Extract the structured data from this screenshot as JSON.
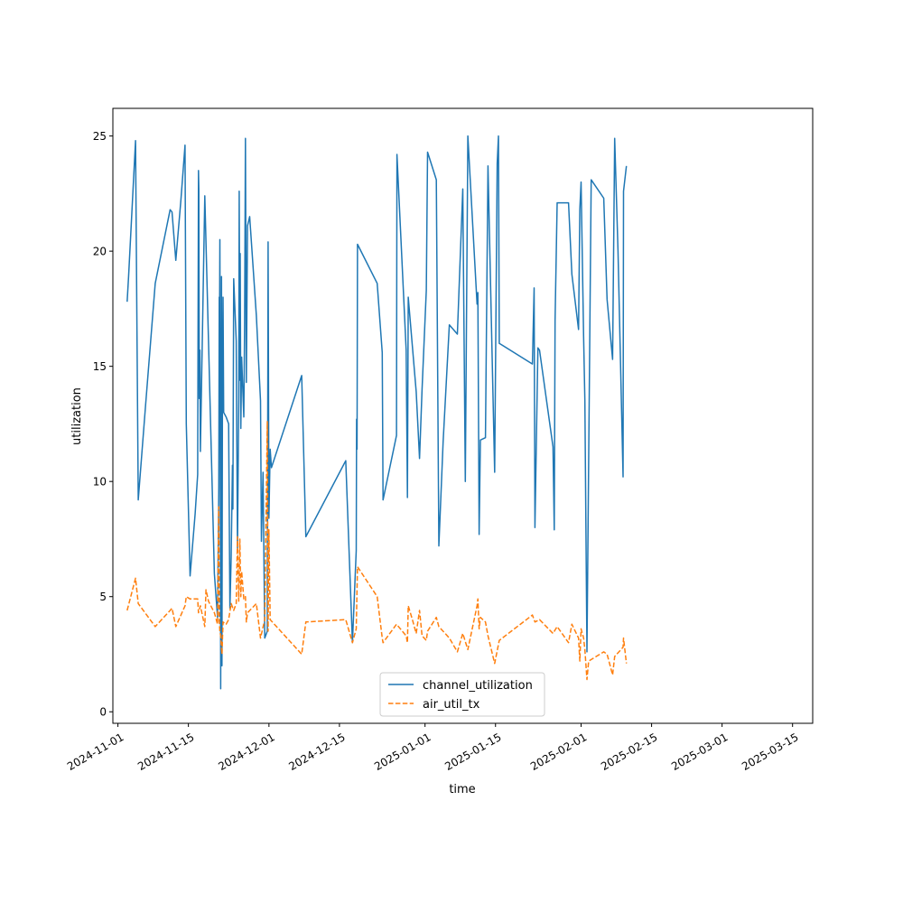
{
  "chart_data": {
    "type": "line",
    "xlabel": "time",
    "ylabel": "utilization",
    "xlim": [
      "2024-10-31",
      "2025-03-19"
    ],
    "ylim": [
      -0.5,
      26.2
    ],
    "x_ticks": [
      "2024-11-01",
      "2024-11-15",
      "2024-12-01",
      "2024-12-15",
      "2025-01-01",
      "2025-01-15",
      "2025-02-01",
      "2025-02-15",
      "2025-03-01",
      "2025-03-15"
    ],
    "y_ticks": [
      0,
      5,
      10,
      15,
      20,
      25
    ],
    "grid": false,
    "legend_position": "bottom-center",
    "series": [
      {
        "name": "channel_utilization",
        "color": "#1f77b4",
        "dash": "solid",
        "points": [
          [
            "2024-11-02 20:00",
            17.8
          ],
          [
            "2024-11-03 03:00",
            18.9
          ],
          [
            "2024-11-04 12:00",
            24.8
          ],
          [
            "2024-11-05 01:00",
            9.2
          ],
          [
            "2024-11-06 12:00",
            13.3
          ],
          [
            "2024-11-08 10:00",
            18.6
          ],
          [
            "2024-11-11 09:00",
            21.8
          ],
          [
            "2024-11-11 18:00",
            21.7
          ],
          [
            "2024-11-12 12:00",
            19.6
          ],
          [
            "2024-11-13 12:00",
            22.2
          ],
          [
            "2024-11-14 08:00",
            24.6
          ],
          [
            "2024-11-14 14:00",
            12.5
          ],
          [
            "2024-11-15 08:00",
            5.9
          ],
          [
            "2024-11-16 08:00",
            8.6
          ],
          [
            "2024-11-16 20:00",
            10.3
          ],
          [
            "2024-11-17 00:00",
            23.5
          ],
          [
            "2024-11-17 02:00",
            22.7
          ],
          [
            "2024-11-17 04:00",
            13.6
          ],
          [
            "2024-11-17 07:00",
            15.7
          ],
          [
            "2024-11-17 09:00",
            11.3
          ],
          [
            "2024-11-18 06:00",
            22.4
          ],
          [
            "2024-11-19 00:00",
            16.1
          ],
          [
            "2024-11-20 04:00",
            6.0
          ],
          [
            "2024-11-20 19:00",
            4.1
          ],
          [
            "2024-11-21 01:00",
            9.7
          ],
          [
            "2024-11-21 03:00",
            18.0
          ],
          [
            "2024-11-21 04:00",
            15.5
          ],
          [
            "2024-11-21 06:00",
            20.5
          ],
          [
            "2024-11-21 08:00",
            12.0
          ],
          [
            "2024-11-21 10:00",
            1.0
          ],
          [
            "2024-11-21 14:00",
            18.9
          ],
          [
            "2024-11-21 16:00",
            2.0
          ],
          [
            "2024-11-21 18:00",
            13.0
          ],
          [
            "2024-11-21 21:00",
            18.0
          ],
          [
            "2024-11-22 00:00",
            13.0
          ],
          [
            "2024-11-22 12:00",
            12.8
          ],
          [
            "2024-11-23 00:00",
            12.5
          ],
          [
            "2024-11-23 06:00",
            4.5
          ],
          [
            "2024-11-23 12:00",
            6.7
          ],
          [
            "2024-11-23 18:00",
            10.7
          ],
          [
            "2024-11-23 20:00",
            8.8
          ],
          [
            "2024-11-24 00:00",
            18.8
          ],
          [
            "2024-11-24 12:00",
            16.1
          ],
          [
            "2024-11-24 18:00",
            7.0
          ],
          [
            "2024-11-25 00:00",
            13.6
          ],
          [
            "2024-11-25 02:00",
            22.6
          ],
          [
            "2024-11-25 05:00",
            14.4
          ],
          [
            "2024-11-25 07:00",
            19.9
          ],
          [
            "2024-11-25 10:00",
            12.3
          ],
          [
            "2024-11-25 14:00",
            15.4
          ],
          [
            "2024-11-26 00:00",
            12.8
          ],
          [
            "2024-11-26 04:00",
            16.9
          ],
          [
            "2024-11-26 08:00",
            24.9
          ],
          [
            "2024-11-26 12:00",
            14.3
          ],
          [
            "2024-11-26 18:00",
            21.1
          ],
          [
            "2024-11-27 04:00",
            21.5
          ],
          [
            "2024-11-28 12:00",
            17.2
          ],
          [
            "2024-11-29 08:00",
            13.5
          ],
          [
            "2024-11-29 12:00",
            7.4
          ],
          [
            "2024-11-29 20:00",
            10.4
          ],
          [
            "2024-11-30 04:00",
            3.2
          ],
          [
            "2024-11-30 16:00",
            3.5
          ],
          [
            "2024-11-30 20:00",
            20.4
          ],
          [
            "2024-12-01 00:00",
            8.4
          ],
          [
            "2024-12-01 06:00",
            11.4
          ],
          [
            "2024-12-01 12:00",
            10.6
          ],
          [
            "2024-12-07 12:00",
            14.6
          ],
          [
            "2024-12-08 08:00",
            7.6
          ],
          [
            "2024-12-16 06:00",
            10.9
          ],
          [
            "2024-12-17 14:00",
            3.0
          ],
          [
            "2024-12-18 08:00",
            7.0
          ],
          [
            "2024-12-18 10:00",
            12.7
          ],
          [
            "2024-12-18 12:00",
            11.4
          ],
          [
            "2024-12-18 14:00",
            20.3
          ],
          [
            "2024-12-22 12:00",
            18.6
          ],
          [
            "2024-12-23 12:00",
            15.6
          ],
          [
            "2024-12-23 16:00",
            9.2
          ],
          [
            "2024-12-26 08:00",
            12.0
          ],
          [
            "2024-12-26 10:00",
            24.2
          ],
          [
            "2024-12-28 06:00",
            15.7
          ],
          [
            "2024-12-28 12:00",
            9.3
          ],
          [
            "2024-12-28 16:00",
            18.0
          ],
          [
            "2024-12-30 06:00",
            13.9
          ],
          [
            "2024-12-30 22:00",
            11.0
          ],
          [
            "2024-12-31 10:00",
            14.0
          ],
          [
            "2025-01-01 06:00",
            18.3
          ],
          [
            "2025-01-01 12:00",
            24.3
          ],
          [
            "2025-01-03 06:00",
            23.1
          ],
          [
            "2025-01-03 18:00",
            7.2
          ],
          [
            "2025-01-04 14:00",
            11.7
          ],
          [
            "2025-01-05 20:00",
            16.8
          ],
          [
            "2025-01-07 10:00",
            16.4
          ],
          [
            "2025-01-08 12:00",
            22.7
          ],
          [
            "2025-01-09 00:00",
            10.0
          ],
          [
            "2025-01-09 12:00",
            25.0
          ],
          [
            "2025-01-11 08:00",
            17.7
          ],
          [
            "2025-01-11 12:00",
            18.2
          ],
          [
            "2025-01-11 18:00",
            7.7
          ],
          [
            "2025-01-12 00:00",
            11.8
          ],
          [
            "2025-01-13 00:00",
            11.9
          ],
          [
            "2025-01-13 12:00",
            23.7
          ],
          [
            "2025-01-14 20:00",
            10.4
          ],
          [
            "2025-01-15 08:00",
            23.8
          ],
          [
            "2025-01-15 14:00",
            25.0
          ],
          [
            "2025-01-15 18:00",
            16.0
          ],
          [
            "2025-01-22 08:00",
            15.1
          ],
          [
            "2025-01-22 16:00",
            18.4
          ],
          [
            "2025-01-22 20:00",
            8.0
          ],
          [
            "2025-01-23 10:00",
            15.8
          ],
          [
            "2025-01-23 18:00",
            15.7
          ],
          [
            "2025-01-26 10:00",
            11.5
          ],
          [
            "2025-01-26 16:00",
            7.9
          ],
          [
            "2025-01-26 20:00",
            17.0
          ],
          [
            "2025-01-27 06:00",
            22.1
          ],
          [
            "2025-01-29 12:00",
            22.1
          ],
          [
            "2025-01-30 04:00",
            19.0
          ],
          [
            "2025-01-31 12:00",
            16.6
          ],
          [
            "2025-01-31 18:00",
            21.8
          ],
          [
            "2025-02-01 00:00",
            23.0
          ],
          [
            "2025-02-01 12:00",
            16.3
          ],
          [
            "2025-02-01 18:00",
            13.5
          ],
          [
            "2025-02-02 04:00",
            2.6
          ],
          [
            "2025-02-03 00:00",
            23.1
          ],
          [
            "2025-02-05 12:00",
            22.3
          ],
          [
            "2025-02-06 04:00",
            17.9
          ],
          [
            "2025-02-07 06:00",
            15.3
          ],
          [
            "2025-02-07 16:00",
            24.9
          ],
          [
            "2025-02-08 08:00",
            20.0
          ],
          [
            "2025-02-09 08:00",
            10.2
          ],
          [
            "2025-02-09 10:00",
            22.6
          ],
          [
            "2025-02-10 00:00",
            23.7
          ]
        ]
      },
      {
        "name": "air_util_tx",
        "color": "#ff7f0e",
        "dash": "dashed",
        "points": [
          [
            "2024-11-02 20:00",
            4.4
          ],
          [
            "2024-11-04 12:00",
            5.8
          ],
          [
            "2024-11-05 01:00",
            4.7
          ],
          [
            "2024-11-08 10:00",
            3.7
          ],
          [
            "2024-11-11 09:00",
            4.4
          ],
          [
            "2024-11-11 18:00",
            4.5
          ],
          [
            "2024-11-12 12:00",
            3.7
          ],
          [
            "2024-11-14 08:00",
            4.6
          ],
          [
            "2024-11-14 14:00",
            5.0
          ],
          [
            "2024-11-15 08:00",
            4.9
          ],
          [
            "2024-11-16 20:00",
            4.9
          ],
          [
            "2024-11-17 00:00",
            4.3
          ],
          [
            "2024-11-17 09:00",
            4.6
          ],
          [
            "2024-11-18 06:00",
            3.7
          ],
          [
            "2024-11-18 12:00",
            5.3
          ],
          [
            "2024-11-19 00:00",
            4.8
          ],
          [
            "2024-11-20 04:00",
            4.3
          ],
          [
            "2024-11-20 19:00",
            3.8
          ],
          [
            "2024-11-21 01:00",
            8.9
          ],
          [
            "2024-11-21 03:00",
            4.0
          ],
          [
            "2024-11-21 06:00",
            3.5
          ],
          [
            "2024-11-21 10:00",
            3.3
          ],
          [
            "2024-11-21 16:00",
            2.5
          ],
          [
            "2024-11-21 21:00",
            3.9
          ],
          [
            "2024-11-22 12:00",
            3.8
          ],
          [
            "2024-11-23 00:00",
            4.0
          ],
          [
            "2024-11-23 12:00",
            4.7
          ],
          [
            "2024-11-24 00:00",
            4.4
          ],
          [
            "2024-11-24 12:00",
            4.7
          ],
          [
            "2024-11-24 18:00",
            7.6
          ],
          [
            "2024-11-25 00:00",
            4.8
          ],
          [
            "2024-11-25 05:00",
            7.5
          ],
          [
            "2024-11-25 10:00",
            5.0
          ],
          [
            "2024-11-25 14:00",
            6.1
          ],
          [
            "2024-11-26 00:00",
            4.9
          ],
          [
            "2024-11-26 08:00",
            5.0
          ],
          [
            "2024-11-26 12:00",
            3.9
          ],
          [
            "2024-11-26 18:00",
            4.3
          ],
          [
            "2024-11-28 12:00",
            4.7
          ],
          [
            "2024-11-29 08:00",
            3.2
          ],
          [
            "2024-11-30 04:00",
            4.0
          ],
          [
            "2024-11-30 16:00",
            12.6
          ],
          [
            "2024-11-30 20:00",
            3.5
          ],
          [
            "2024-12-01 00:00",
            7.9
          ],
          [
            "2024-12-01 06:00",
            4.0
          ],
          [
            "2024-12-07 12:00",
            2.5
          ],
          [
            "2024-12-08 08:00",
            3.9
          ],
          [
            "2024-12-16 06:00",
            4.0
          ],
          [
            "2024-12-17 14:00",
            3.0
          ],
          [
            "2024-12-18 08:00",
            3.6
          ],
          [
            "2024-12-18 14:00",
            6.3
          ],
          [
            "2024-12-22 12:00",
            5.0
          ],
          [
            "2024-12-23 12:00",
            3.2
          ],
          [
            "2024-12-23 16:00",
            3.0
          ],
          [
            "2024-12-26 08:00",
            3.8
          ],
          [
            "2024-12-28 06:00",
            3.3
          ],
          [
            "2024-12-28 12:00",
            3.0
          ],
          [
            "2024-12-28 16:00",
            4.6
          ],
          [
            "2024-12-29 12:00",
            4.0
          ],
          [
            "2024-12-30 06:00",
            3.4
          ],
          [
            "2024-12-30 22:00",
            4.4
          ],
          [
            "2024-12-31 10:00",
            3.3
          ],
          [
            "2025-01-01 06:00",
            3.1
          ],
          [
            "2025-01-01 12:00",
            3.5
          ],
          [
            "2025-01-03 06:00",
            4.1
          ],
          [
            "2025-01-03 18:00",
            3.7
          ],
          [
            "2025-01-04 14:00",
            3.5
          ],
          [
            "2025-01-05 20:00",
            3.2
          ],
          [
            "2025-01-07 10:00",
            2.6
          ],
          [
            "2025-01-08 12:00",
            3.4
          ],
          [
            "2025-01-09 12:00",
            2.7
          ],
          [
            "2025-01-11 08:00",
            4.6
          ],
          [
            "2025-01-11 12:00",
            4.9
          ],
          [
            "2025-01-11 18:00",
            3.6
          ],
          [
            "2025-01-12 00:00",
            4.1
          ],
          [
            "2025-01-13 00:00",
            3.9
          ],
          [
            "2025-01-13 12:00",
            3.3
          ],
          [
            "2025-01-14 20:00",
            2.1
          ],
          [
            "2025-01-15 18:00",
            3.1
          ],
          [
            "2025-01-22 08:00",
            4.2
          ],
          [
            "2025-01-22 20:00",
            3.9
          ],
          [
            "2025-01-23 18:00",
            4.0
          ],
          [
            "2025-01-26 10:00",
            3.4
          ],
          [
            "2025-01-27 06:00",
            3.7
          ],
          [
            "2025-01-29 12:00",
            3.0
          ],
          [
            "2025-01-30 04:00",
            3.8
          ],
          [
            "2025-01-31 12:00",
            3.2
          ],
          [
            "2025-01-31 18:00",
            2.2
          ],
          [
            "2025-02-01 00:00",
            3.6
          ],
          [
            "2025-02-01 12:00",
            3.2
          ],
          [
            "2025-02-01 18:00",
            2.7
          ],
          [
            "2025-02-02 04:00",
            1.4
          ],
          [
            "2025-02-02 12:00",
            2.2
          ],
          [
            "2025-02-05 12:00",
            2.6
          ],
          [
            "2025-02-06 04:00",
            2.5
          ],
          [
            "2025-02-07 06:00",
            1.6
          ],
          [
            "2025-02-07 16:00",
            2.4
          ],
          [
            "2025-02-09 08:00",
            2.8
          ],
          [
            "2025-02-09 10:00",
            3.2
          ],
          [
            "2025-02-10 00:00",
            2.1
          ]
        ]
      }
    ]
  }
}
